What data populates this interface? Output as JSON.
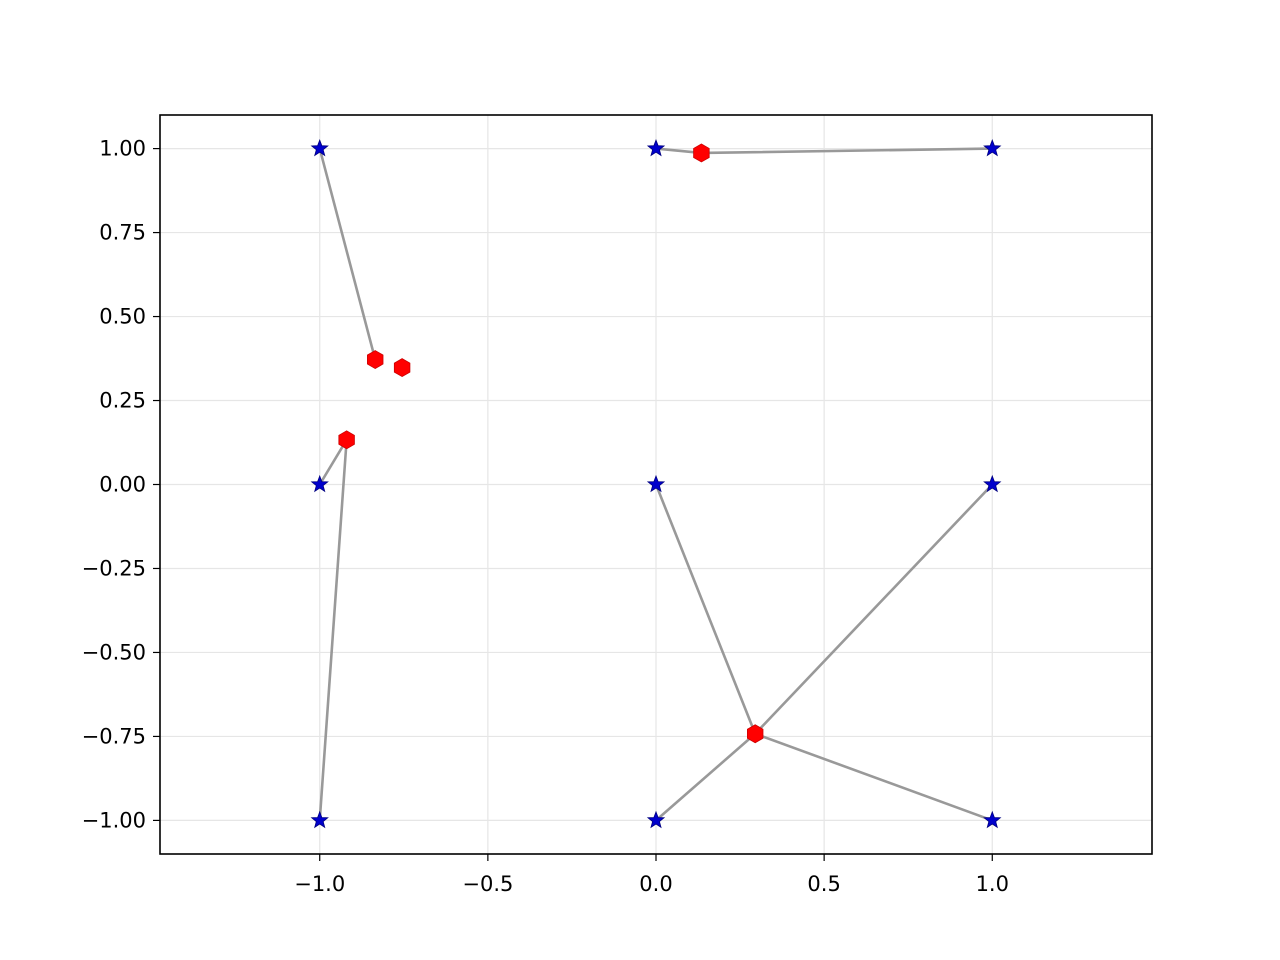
{
  "chart_data": {
    "type": "scatter",
    "title": "",
    "xlabel": "",
    "ylabel": "",
    "xlim": [
      -1.475,
      1.475
    ],
    "ylim": [
      -1.1,
      1.1
    ],
    "grid": true,
    "xticks": [
      -1.0,
      -0.5,
      0.0,
      0.5,
      1.0
    ],
    "xtick_labels": [
      "−1.0",
      "−0.5",
      "0.0",
      "0.5",
      "1.0"
    ],
    "yticks": [
      1.0,
      0.75,
      0.5,
      0.25,
      0.0,
      -0.25,
      -0.5,
      -0.75,
      -1.0
    ],
    "ytick_labels": [
      "1.00",
      "0.75",
      "0.50",
      "0.25",
      "0.00",
      "−0.25",
      "−0.50",
      "−0.75",
      "−1.00"
    ],
    "colors": {
      "star": "#0000cc",
      "hexagon": "#ff0000",
      "line": "#999999",
      "grid": "#e6e6e6",
      "axes": "#000000"
    },
    "series": [
      {
        "marker": "star-icon",
        "points": [
          [
            -1,
            1
          ],
          [
            0,
            1
          ],
          [
            1,
            1
          ],
          [
            -1,
            0
          ],
          [
            0,
            0
          ],
          [
            1,
            0
          ],
          [
            -1,
            -1
          ],
          [
            0,
            -1
          ],
          [
            1,
            -1
          ]
        ]
      },
      {
        "marker": "hexagon-icon",
        "points": [
          [
            -0.835,
            0.372
          ],
          [
            -0.755,
            0.348
          ],
          [
            -0.92,
            0.133
          ],
          [
            0.135,
            0.987
          ],
          [
            0.295,
            -0.742
          ]
        ]
      }
    ],
    "segments": [
      [
        [
          -1,
          1
        ],
        [
          -0.835,
          0.372
        ]
      ],
      [
        [
          0,
          1
        ],
        [
          0.135,
          0.987
        ]
      ],
      [
        [
          1,
          1
        ],
        [
          0.135,
          0.987
        ]
      ],
      [
        [
          -1,
          0
        ],
        [
          -0.92,
          0.133
        ]
      ],
      [
        [
          -1,
          -1
        ],
        [
          -0.92,
          0.133
        ]
      ],
      [
        [
          0,
          0
        ],
        [
          0.295,
          -0.742
        ]
      ],
      [
        [
          1,
          0
        ],
        [
          0.295,
          -0.742
        ]
      ],
      [
        [
          0,
          -1
        ],
        [
          0.295,
          -0.742
        ]
      ],
      [
        [
          1,
          -1
        ],
        [
          0.295,
          -0.742
        ]
      ]
    ]
  }
}
